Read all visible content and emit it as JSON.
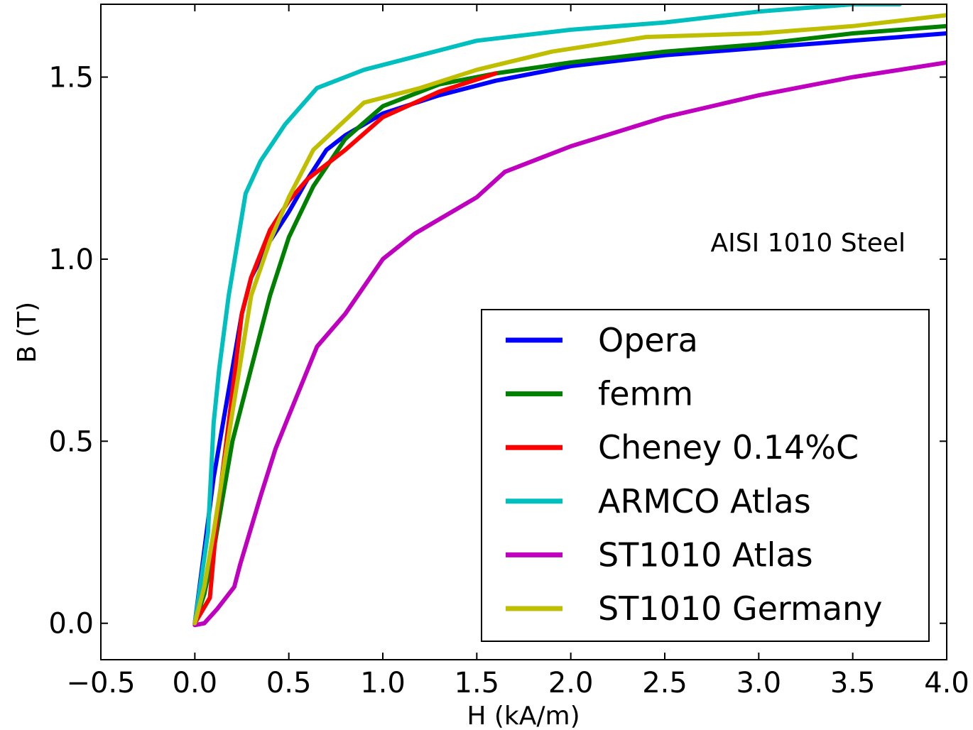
{
  "chart_data": {
    "type": "line",
    "title": "",
    "xlabel": "H (kA/m)",
    "ylabel": "B (T)",
    "xlim": [
      -0.5,
      4.0
    ],
    "ylim": [
      -0.1,
      1.7
    ],
    "x_ticks": [
      "−0.5",
      "0.0",
      "0.5",
      "1.0",
      "1.5",
      "2.0",
      "2.5",
      "3.0",
      "3.5",
      "4.0"
    ],
    "y_ticks": [
      "0.0",
      "0.5",
      "1.0",
      "1.5"
    ],
    "annotation": "AISI 1010 Steel",
    "grid": false,
    "legend_position": "lower-right",
    "series": [
      {
        "name": "Opera",
        "color": "#0000ff",
        "points": [
          [
            0,
            0
          ],
          [
            0.05,
            0.2
          ],
          [
            0.1,
            0.4
          ],
          [
            0.15,
            0.55
          ],
          [
            0.2,
            0.7
          ],
          [
            0.25,
            0.85
          ],
          [
            0.3,
            0.95
          ],
          [
            0.4,
            1.05
          ],
          [
            0.5,
            1.13
          ],
          [
            0.6,
            1.22
          ],
          [
            0.7,
            1.3
          ],
          [
            0.8,
            1.34
          ],
          [
            1.0,
            1.4
          ],
          [
            1.3,
            1.45
          ],
          [
            1.6,
            1.49
          ],
          [
            2.0,
            1.53
          ],
          [
            2.5,
            1.56
          ],
          [
            3.0,
            1.58
          ],
          [
            3.5,
            1.6
          ],
          [
            4.0,
            1.62
          ]
        ]
      },
      {
        "name": "femm",
        "color": "#008000",
        "points": [
          [
            0,
            0
          ],
          [
            0.05,
            0.08
          ],
          [
            0.1,
            0.2
          ],
          [
            0.15,
            0.35
          ],
          [
            0.2,
            0.5
          ],
          [
            0.3,
            0.7
          ],
          [
            0.4,
            0.9
          ],
          [
            0.5,
            1.06
          ],
          [
            0.63,
            1.2
          ],
          [
            0.8,
            1.33
          ],
          [
            1.0,
            1.42
          ],
          [
            1.3,
            1.48
          ],
          [
            1.6,
            1.51
          ],
          [
            2.0,
            1.54
          ],
          [
            2.5,
            1.57
          ],
          [
            3.0,
            1.59
          ],
          [
            3.5,
            1.62
          ],
          [
            4.0,
            1.64
          ]
        ]
      },
      {
        "name": "Cheney 0.14%C",
        "color": "#ff0000",
        "points": [
          [
            0,
            0
          ],
          [
            0.08,
            0.07
          ],
          [
            0.12,
            0.3
          ],
          [
            0.18,
            0.55
          ],
          [
            0.25,
            0.85
          ],
          [
            0.3,
            0.95
          ],
          [
            0.4,
            1.08
          ],
          [
            0.5,
            1.16
          ],
          [
            0.6,
            1.22
          ],
          [
            0.8,
            1.3
          ],
          [
            1.0,
            1.39
          ],
          [
            1.3,
            1.46
          ],
          [
            1.6,
            1.51
          ]
        ]
      },
      {
        "name": "ARMCO Atlas",
        "color": "#00bfbf",
        "points": [
          [
            0,
            0
          ],
          [
            0.07,
            0.25
          ],
          [
            0.1,
            0.55
          ],
          [
            0.13,
            0.7
          ],
          [
            0.18,
            0.9
          ],
          [
            0.27,
            1.18
          ],
          [
            0.35,
            1.27
          ],
          [
            0.48,
            1.37
          ],
          [
            0.65,
            1.47
          ],
          [
            0.9,
            1.52
          ],
          [
            1.2,
            1.56
          ],
          [
            1.5,
            1.6
          ],
          [
            2.0,
            1.63
          ],
          [
            2.5,
            1.65
          ],
          [
            3.0,
            1.68
          ],
          [
            3.5,
            1.7
          ],
          [
            3.75,
            1.7
          ]
        ]
      },
      {
        "name": "ST1010 Atlas",
        "color": "#bf00bf",
        "points": [
          [
            0,
            -0.005
          ],
          [
            0.05,
            0.0
          ],
          [
            0.12,
            0.04
          ],
          [
            0.21,
            0.1
          ],
          [
            0.24,
            0.16
          ],
          [
            0.35,
            0.35
          ],
          [
            0.43,
            0.48
          ],
          [
            0.5,
            0.57
          ],
          [
            0.65,
            0.76
          ],
          [
            0.8,
            0.85
          ],
          [
            1.0,
            1.0
          ],
          [
            1.17,
            1.07
          ],
          [
            1.5,
            1.17
          ],
          [
            1.65,
            1.24
          ],
          [
            2.0,
            1.31
          ],
          [
            2.5,
            1.39
          ],
          [
            3.0,
            1.45
          ],
          [
            3.5,
            1.5
          ],
          [
            4.0,
            1.54
          ]
        ]
      },
      {
        "name": "ST1010 Germany",
        "color": "#bfbf00",
        "points": [
          [
            0,
            0
          ],
          [
            0.05,
            0.1
          ],
          [
            0.1,
            0.25
          ],
          [
            0.2,
            0.58
          ],
          [
            0.3,
            0.9
          ],
          [
            0.4,
            1.05
          ],
          [
            0.5,
            1.17
          ],
          [
            0.63,
            1.3
          ],
          [
            0.9,
            1.43
          ],
          [
            1.2,
            1.47
          ],
          [
            1.5,
            1.52
          ],
          [
            1.9,
            1.57
          ],
          [
            2.4,
            1.61
          ],
          [
            3.0,
            1.62
          ],
          [
            3.5,
            1.64
          ],
          [
            4.0,
            1.67
          ]
        ]
      }
    ]
  }
}
